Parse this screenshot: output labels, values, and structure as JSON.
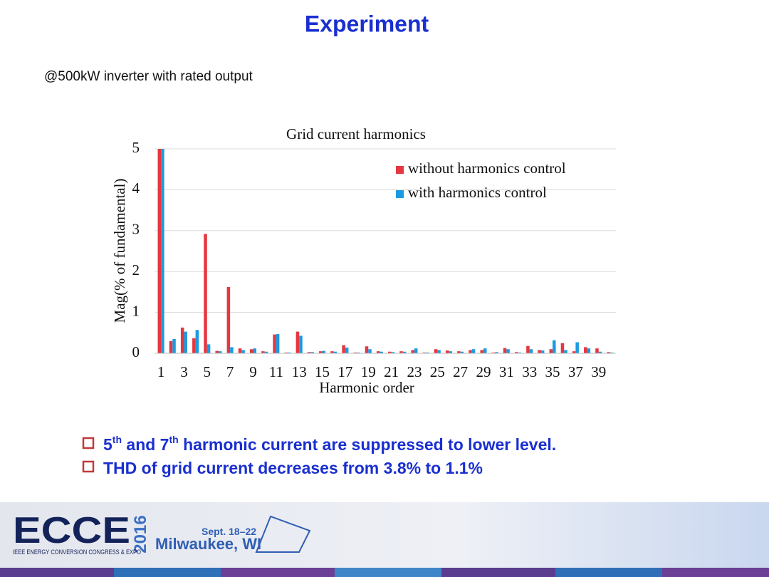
{
  "slide": {
    "title": "Experiment",
    "subtitle": "@500kW inverter with  rated output",
    "bullets": [
      [
        "5",
        "th",
        " and 7",
        "th",
        " harmonic current are suppressed to lower level."
      ],
      [
        "THD of grid current decreases from 3.8% to 1.1%"
      ]
    ],
    "footer": {
      "logo": "ECCE",
      "year": "2016",
      "org": "IEEE ENERGY CONVERSION CONGRESS & EXPO",
      "dates": "Sept. 18–22",
      "place": "Milwaukee, WI"
    }
  },
  "chart_data": {
    "type": "bar",
    "title": "Grid current harmonics",
    "x_label": "Harmonic order",
    "y_label": "Mag(% of fundamental)",
    "categories": [
      1,
      null,
      3,
      null,
      5,
      null,
      7,
      null,
      9,
      null,
      11,
      null,
      13,
      null,
      15,
      null,
      17,
      null,
      19,
      null,
      21,
      null,
      23,
      null,
      25,
      null,
      27,
      null,
      29,
      null,
      31,
      null,
      33,
      null,
      35,
      null,
      37,
      null,
      39,
      null
    ],
    "series": [
      {
        "name": "without harmonics control",
        "color": "#e5373f",
        "values": [
          5,
          0.3,
          0.63,
          0.37,
          2.92,
          0.06,
          1.62,
          0.12,
          0.1,
          0.05,
          0.46,
          0.02,
          0.53,
          0.03,
          0.05,
          0.05,
          0.2,
          0.02,
          0.17,
          0.05,
          0.04,
          0.05,
          0.08,
          0.02,
          0.1,
          0.07,
          0.05,
          0.08,
          0.08,
          0.02,
          0.13,
          0.03,
          0.18,
          0.08,
          0.1,
          0.25,
          0.05,
          0.15,
          0.12,
          0.03
        ]
      },
      {
        "name": "with harmonics control",
        "color": "#1c9ae0",
        "values": [
          5,
          0.35,
          0.53,
          0.57,
          0.22,
          0.05,
          0.15,
          0.08,
          0.12,
          0.04,
          0.47,
          0.02,
          0.43,
          0.03,
          0.06,
          0.04,
          0.14,
          0.02,
          0.1,
          0.04,
          0.03,
          0.04,
          0.12,
          0.02,
          0.08,
          0.05,
          0.04,
          0.1,
          0.12,
          0.03,
          0.1,
          0.02,
          0.1,
          0.07,
          0.32,
          0.08,
          0.27,
          0.12,
          0.04,
          0.02
        ]
      }
    ],
    "ylim": [
      0,
      5
    ],
    "yticks": [
      0,
      1,
      2,
      3,
      4,
      5
    ],
    "grid": true,
    "legend": "upper right"
  }
}
